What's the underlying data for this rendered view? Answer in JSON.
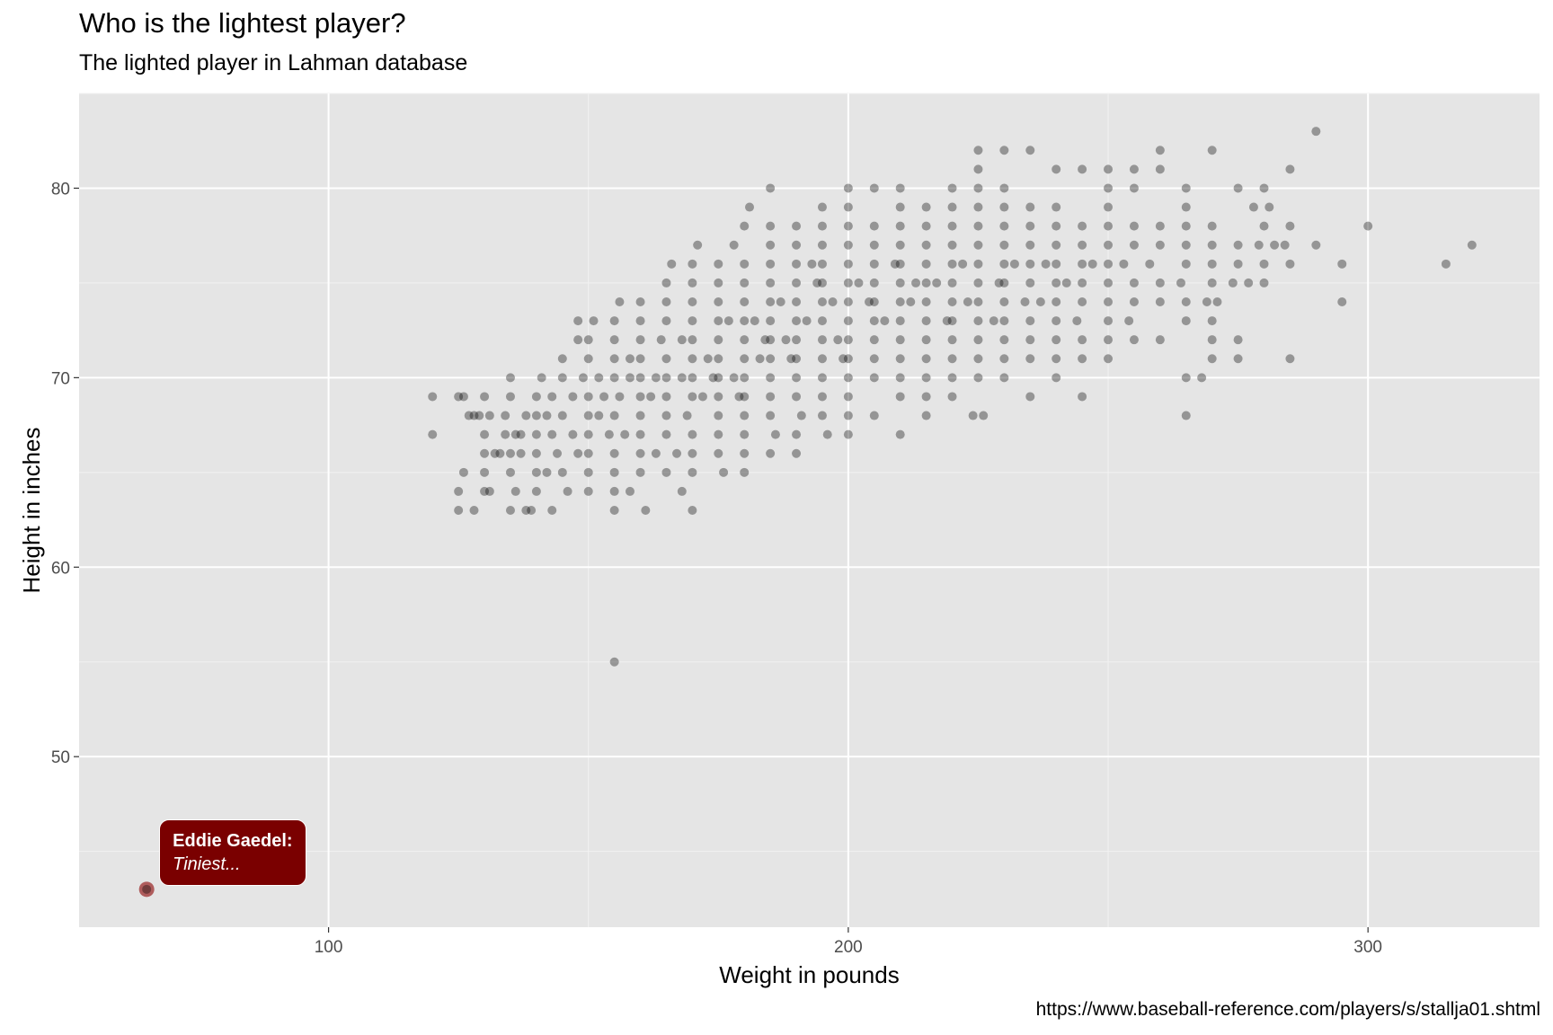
{
  "chart_data": {
    "type": "scatter",
    "title": "Who is the lightest player?",
    "subtitle": "The lighted player in Lahman database",
    "caption": "https://www.baseball-reference.com/players/s/stallja01.shtml",
    "xlabel": "Weight in pounds",
    "ylabel": "Height in inches",
    "xlim": [
      52,
      333
    ],
    "ylim": [
      41,
      85
    ],
    "x_ticks": [
      100,
      200,
      300
    ],
    "y_ticks": [
      50,
      60,
      70,
      80
    ],
    "grid": true,
    "point_color": "#000000",
    "point_alpha": 0.35,
    "highlight_color": "#8b0000",
    "label_color": "#7a0000",
    "points": [
      [
        120,
        69
      ],
      [
        120,
        67
      ],
      [
        125,
        64
      ],
      [
        125,
        63
      ],
      [
        125,
        69
      ],
      [
        126,
        69
      ],
      [
        126,
        65
      ],
      [
        127,
        68
      ],
      [
        128,
        63
      ],
      [
        128,
        68
      ],
      [
        129,
        68
      ],
      [
        130,
        64
      ],
      [
        130,
        66
      ],
      [
        130,
        67
      ],
      [
        130,
        69
      ],
      [
        130,
        65
      ],
      [
        131,
        64
      ],
      [
        131,
        68
      ],
      [
        132,
        66
      ],
      [
        133,
        66
      ],
      [
        134,
        67
      ],
      [
        134,
        68
      ],
      [
        135,
        65
      ],
      [
        135,
        66
      ],
      [
        135,
        63
      ],
      [
        135,
        70
      ],
      [
        135,
        69
      ],
      [
        136,
        67
      ],
      [
        136,
        64
      ],
      [
        137,
        67
      ],
      [
        137,
        66
      ],
      [
        138,
        63
      ],
      [
        138,
        68
      ],
      [
        139,
        63
      ],
      [
        140,
        68
      ],
      [
        140,
        65
      ],
      [
        140,
        69
      ],
      [
        140,
        67
      ],
      [
        140,
        64
      ],
      [
        140,
        66
      ],
      [
        141,
        70
      ],
      [
        142,
        65
      ],
      [
        142,
        68
      ],
      [
        143,
        69
      ],
      [
        143,
        63
      ],
      [
        143,
        67
      ],
      [
        144,
        66
      ],
      [
        145,
        71
      ],
      [
        145,
        65
      ],
      [
        145,
        70
      ],
      [
        145,
        68
      ],
      [
        146,
        64
      ],
      [
        147,
        67
      ],
      [
        147,
        69
      ],
      [
        148,
        66
      ],
      [
        148,
        72
      ],
      [
        148,
        73
      ],
      [
        149,
        70
      ],
      [
        150,
        68
      ],
      [
        150,
        65
      ],
      [
        150,
        72
      ],
      [
        150,
        69
      ],
      [
        150,
        67
      ],
      [
        150,
        64
      ],
      [
        150,
        71
      ],
      [
        150,
        66
      ],
      [
        151,
        73
      ],
      [
        152,
        70
      ],
      [
        152,
        68
      ],
      [
        153,
        69
      ],
      [
        154,
        67
      ],
      [
        155,
        71
      ],
      [
        155,
        66
      ],
      [
        155,
        63
      ],
      [
        155,
        64
      ],
      [
        155,
        72
      ],
      [
        155,
        73
      ],
      [
        155,
        70
      ],
      [
        155,
        65
      ],
      [
        155,
        68
      ],
      [
        155,
        55
      ],
      [
        156,
        74
      ],
      [
        156,
        69
      ],
      [
        157,
        67
      ],
      [
        158,
        71
      ],
      [
        158,
        64
      ],
      [
        158,
        70
      ],
      [
        160,
        69
      ],
      [
        160,
        72
      ],
      [
        160,
        66
      ],
      [
        160,
        68
      ],
      [
        160,
        73
      ],
      [
        160,
        65
      ],
      [
        160,
        70
      ],
      [
        160,
        67
      ],
      [
        160,
        74
      ],
      [
        160,
        71
      ],
      [
        161,
        63
      ],
      [
        162,
        69
      ],
      [
        163,
        66
      ],
      [
        163,
        70
      ],
      [
        164,
        72
      ],
      [
        165,
        74
      ],
      [
        165,
        67
      ],
      [
        165,
        71
      ],
      [
        165,
        68
      ],
      [
        165,
        75
      ],
      [
        165,
        69
      ],
      [
        165,
        70
      ],
      [
        165,
        73
      ],
      [
        165,
        65
      ],
      [
        166,
        76
      ],
      [
        167,
        66
      ],
      [
        168,
        72
      ],
      [
        168,
        64
      ],
      [
        168,
        70
      ],
      [
        169,
        68
      ],
      [
        170,
        69
      ],
      [
        170,
        71
      ],
      [
        170,
        73
      ],
      [
        170,
        67
      ],
      [
        170,
        74
      ],
      [
        170,
        72
      ],
      [
        170,
        75
      ],
      [
        170,
        70
      ],
      [
        170,
        66
      ],
      [
        170,
        65
      ],
      [
        170,
        63
      ],
      [
        170,
        76
      ],
      [
        171,
        77
      ],
      [
        172,
        69
      ],
      [
        173,
        71
      ],
      [
        174,
        70
      ],
      [
        175,
        72
      ],
      [
        175,
        73
      ],
      [
        175,
        68
      ],
      [
        175,
        70
      ],
      [
        175,
        71
      ],
      [
        175,
        74
      ],
      [
        175,
        69
      ],
      [
        175,
        76
      ],
      [
        175,
        75
      ],
      [
        175,
        67
      ],
      [
        175,
        66
      ],
      [
        176,
        65
      ],
      [
        177,
        73
      ],
      [
        178,
        70
      ],
      [
        178,
        77
      ],
      [
        179,
        69
      ],
      [
        180,
        72
      ],
      [
        180,
        74
      ],
      [
        180,
        73
      ],
      [
        180,
        70
      ],
      [
        180,
        68
      ],
      [
        180,
        71
      ],
      [
        180,
        75
      ],
      [
        180,
        76
      ],
      [
        180,
        69
      ],
      [
        180,
        78
      ],
      [
        180,
        67
      ],
      [
        180,
        66
      ],
      [
        180,
        65
      ],
      [
        181,
        79
      ],
      [
        182,
        73
      ],
      [
        183,
        71
      ],
      [
        184,
        72
      ],
      [
        185,
        74
      ],
      [
        185,
        75
      ],
      [
        185,
        73
      ],
      [
        185,
        72
      ],
      [
        185,
        76
      ],
      [
        185,
        71
      ],
      [
        185,
        70
      ],
      [
        185,
        77
      ],
      [
        185,
        69
      ],
      [
        185,
        68
      ],
      [
        185,
        78
      ],
      [
        185,
        80
      ],
      [
        185,
        66
      ],
      [
        186,
        67
      ],
      [
        187,
        74
      ],
      [
        188,
        72
      ],
      [
        189,
        71
      ],
      [
        190,
        73
      ],
      [
        190,
        75
      ],
      [
        190,
        74
      ],
      [
        190,
        76
      ],
      [
        190,
        72
      ],
      [
        190,
        77
      ],
      [
        190,
        71
      ],
      [
        190,
        70
      ],
      [
        190,
        78
      ],
      [
        190,
        69
      ],
      [
        190,
        67
      ],
      [
        190,
        66
      ],
      [
        191,
        68
      ],
      [
        192,
        73
      ],
      [
        193,
        76
      ],
      [
        194,
        75
      ],
      [
        195,
        74
      ],
      [
        195,
        76
      ],
      [
        195,
        75
      ],
      [
        195,
        73
      ],
      [
        195,
        77
      ],
      [
        195,
        72
      ],
      [
        195,
        78
      ],
      [
        195,
        71
      ],
      [
        195,
        70
      ],
      [
        195,
        69
      ],
      [
        195,
        68
      ],
      [
        195,
        79
      ],
      [
        196,
        67
      ],
      [
        197,
        74
      ],
      [
        198,
        72
      ],
      [
        199,
        71
      ],
      [
        200,
        75
      ],
      [
        200,
        76
      ],
      [
        200,
        74
      ],
      [
        200,
        73
      ],
      [
        200,
        77
      ],
      [
        200,
        72
      ],
      [
        200,
        78
      ],
      [
        200,
        71
      ],
      [
        200,
        70
      ],
      [
        200,
        79
      ],
      [
        200,
        80
      ],
      [
        200,
        69
      ],
      [
        200,
        68
      ],
      [
        200,
        67
      ],
      [
        202,
        75
      ],
      [
        204,
        74
      ],
      [
        205,
        76
      ],
      [
        205,
        75
      ],
      [
        205,
        74
      ],
      [
        205,
        77
      ],
      [
        205,
        73
      ],
      [
        205,
        72
      ],
      [
        205,
        78
      ],
      [
        205,
        71
      ],
      [
        205,
        70
      ],
      [
        205,
        80
      ],
      [
        205,
        68
      ],
      [
        207,
        73
      ],
      [
        209,
        76
      ],
      [
        210,
        75
      ],
      [
        210,
        76
      ],
      [
        210,
        74
      ],
      [
        210,
        77
      ],
      [
        210,
        73
      ],
      [
        210,
        78
      ],
      [
        210,
        72
      ],
      [
        210,
        79
      ],
      [
        210,
        71
      ],
      [
        210,
        70
      ],
      [
        210,
        69
      ],
      [
        210,
        80
      ],
      [
        210,
        67
      ],
      [
        212,
        74
      ],
      [
        213,
        75
      ],
      [
        215,
        76
      ],
      [
        215,
        75
      ],
      [
        215,
        74
      ],
      [
        215,
        77
      ],
      [
        215,
        73
      ],
      [
        215,
        78
      ],
      [
        215,
        72
      ],
      [
        215,
        79
      ],
      [
        215,
        71
      ],
      [
        215,
        70
      ],
      [
        215,
        68
      ],
      [
        215,
        69
      ],
      [
        217,
        75
      ],
      [
        219,
        73
      ],
      [
        220,
        76
      ],
      [
        220,
        75
      ],
      [
        220,
        74
      ],
      [
        220,
        77
      ],
      [
        220,
        73
      ],
      [
        220,
        78
      ],
      [
        220,
        72
      ],
      [
        220,
        79
      ],
      [
        220,
        71
      ],
      [
        220,
        70
      ],
      [
        220,
        69
      ],
      [
        220,
        80
      ],
      [
        222,
        76
      ],
      [
        223,
        74
      ],
      [
        224,
        68
      ],
      [
        225,
        76
      ],
      [
        225,
        75
      ],
      [
        225,
        74
      ],
      [
        225,
        77
      ],
      [
        225,
        73
      ],
      [
        225,
        78
      ],
      [
        225,
        72
      ],
      [
        225,
        79
      ],
      [
        225,
        71
      ],
      [
        225,
        80
      ],
      [
        225,
        70
      ],
      [
        225,
        82
      ],
      [
        225,
        81
      ],
      [
        226,
        68
      ],
      [
        228,
        73
      ],
      [
        229,
        75
      ],
      [
        230,
        76
      ],
      [
        230,
        75
      ],
      [
        230,
        74
      ],
      [
        230,
        77
      ],
      [
        230,
        73
      ],
      [
        230,
        78
      ],
      [
        230,
        72
      ],
      [
        230,
        79
      ],
      [
        230,
        71
      ],
      [
        230,
        70
      ],
      [
        230,
        80
      ],
      [
        230,
        82
      ],
      [
        232,
        76
      ],
      [
        234,
        74
      ],
      [
        235,
        75
      ],
      [
        235,
        76
      ],
      [
        235,
        77
      ],
      [
        235,
        73
      ],
      [
        235,
        78
      ],
      [
        235,
        72
      ],
      [
        235,
        79
      ],
      [
        235,
        71
      ],
      [
        235,
        69
      ],
      [
        235,
        82
      ],
      [
        237,
        74
      ],
      [
        238,
        76
      ],
      [
        240,
        75
      ],
      [
        240,
        76
      ],
      [
        240,
        74
      ],
      [
        240,
        77
      ],
      [
        240,
        73
      ],
      [
        240,
        78
      ],
      [
        240,
        72
      ],
      [
        240,
        79
      ],
      [
        240,
        71
      ],
      [
        240,
        70
      ],
      [
        240,
        81
      ],
      [
        242,
        75
      ],
      [
        244,
        73
      ],
      [
        245,
        76
      ],
      [
        245,
        77
      ],
      [
        245,
        75
      ],
      [
        245,
        74
      ],
      [
        245,
        78
      ],
      [
        245,
        72
      ],
      [
        245,
        71
      ],
      [
        245,
        69
      ],
      [
        245,
        81
      ],
      [
        247,
        76
      ],
      [
        250,
        75
      ],
      [
        250,
        76
      ],
      [
        250,
        77
      ],
      [
        250,
        74
      ],
      [
        250,
        78
      ],
      [
        250,
        73
      ],
      [
        250,
        79
      ],
      [
        250,
        72
      ],
      [
        250,
        71
      ],
      [
        250,
        80
      ],
      [
        250,
        81
      ],
      [
        253,
        76
      ],
      [
        254,
        73
      ],
      [
        255,
        75
      ],
      [
        255,
        77
      ],
      [
        255,
        74
      ],
      [
        255,
        78
      ],
      [
        255,
        72
      ],
      [
        255,
        81
      ],
      [
        255,
        80
      ],
      [
        258,
        76
      ],
      [
        260,
        75
      ],
      [
        260,
        77
      ],
      [
        260,
        74
      ],
      [
        260,
        78
      ],
      [
        260,
        72
      ],
      [
        260,
        81
      ],
      [
        260,
        82
      ],
      [
        264,
        75
      ],
      [
        265,
        76
      ],
      [
        265,
        77
      ],
      [
        265,
        74
      ],
      [
        265,
        78
      ],
      [
        265,
        73
      ],
      [
        265,
        70
      ],
      [
        265,
        68
      ],
      [
        265,
        80
      ],
      [
        265,
        79
      ],
      [
        268,
        70
      ],
      [
        269,
        74
      ],
      [
        270,
        78
      ],
      [
        270,
        77
      ],
      [
        270,
        75
      ],
      [
        270,
        76
      ],
      [
        270,
        73
      ],
      [
        270,
        72
      ],
      [
        270,
        71
      ],
      [
        270,
        82
      ],
      [
        271,
        74
      ],
      [
        274,
        75
      ],
      [
        275,
        76
      ],
      [
        275,
        77
      ],
      [
        275,
        80
      ],
      [
        275,
        71
      ],
      [
        275,
        72
      ],
      [
        277,
        75
      ],
      [
        278,
        79
      ],
      [
        279,
        77
      ],
      [
        280,
        76
      ],
      [
        280,
        75
      ],
      [
        280,
        78
      ],
      [
        280,
        80
      ],
      [
        281,
        79
      ],
      [
        282,
        77
      ],
      [
        284,
        77
      ],
      [
        285,
        78
      ],
      [
        285,
        76
      ],
      [
        285,
        81
      ],
      [
        285,
        71
      ],
      [
        290,
        83
      ],
      [
        290,
        77
      ],
      [
        295,
        74
      ],
      [
        295,
        76
      ],
      [
        300,
        78
      ],
      [
        315,
        76
      ],
      [
        320,
        77
      ]
    ],
    "highlight": {
      "x": 65,
      "y": 43
    },
    "annotation": {
      "line1": "Eddie Gaedel:",
      "line2": "Tiniest..."
    }
  }
}
